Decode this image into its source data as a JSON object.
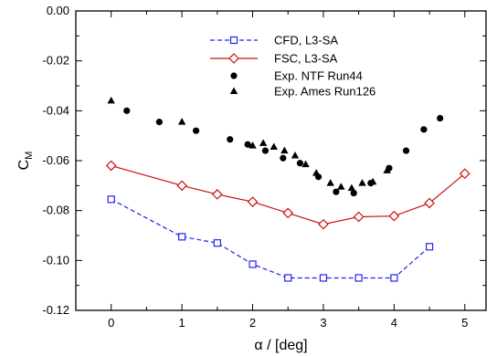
{
  "chart_data": {
    "type": "line",
    "xlabel": "α / [deg]",
    "ylabel_main": "C",
    "ylabel_sub": "M",
    "xlim": [
      -0.5,
      5.3
    ],
    "ylim": [
      -0.12,
      0.0
    ],
    "x_ticks": [
      0,
      1,
      2,
      3,
      4,
      5
    ],
    "x_tick_labels": [
      "0",
      "1",
      "2",
      "3",
      "4",
      "5"
    ],
    "y_ticks": [
      0.0,
      -0.02,
      -0.04,
      -0.06,
      -0.08,
      -0.1,
      -0.12
    ],
    "y_tick_labels": [
      "0.00",
      "-0.02",
      "-0.04",
      "-0.06",
      "-0.08",
      "-0.10",
      "-0.12"
    ],
    "grid": false,
    "legend_position": "top-right",
    "series": [
      {
        "name": "CFD, L3-SA",
        "style": "dashed-line-square",
        "color": "#2222ee",
        "x": [
          0,
          1,
          1.5,
          2,
          2.5,
          3,
          3.5,
          4,
          4.5
        ],
        "y": [
          -0.0755,
          -0.0905,
          -0.093,
          -0.1015,
          -0.107,
          -0.107,
          -0.107,
          -0.107,
          -0.0945
        ]
      },
      {
        "name": "FSC, L3-SA",
        "style": "solid-line-diamond",
        "color": "#cc1111",
        "x": [
          0,
          1,
          1.5,
          2,
          2.5,
          3,
          3.5,
          4,
          4.5,
          5
        ],
        "y": [
          -0.062,
          -0.07,
          -0.0735,
          -0.0765,
          -0.081,
          -0.0855,
          -0.0825,
          -0.0822,
          -0.077,
          -0.0652
        ]
      },
      {
        "name": "Exp. NTF Run44",
        "style": "circle",
        "color": "#000000",
        "x": [
          0.22,
          0.68,
          1.2,
          1.68,
          1.93,
          2.18,
          2.43,
          2.67,
          2.93,
          3.18,
          3.43,
          3.67,
          3.93,
          4.17,
          4.42,
          4.65
        ],
        "y": [
          -0.04,
          -0.0445,
          -0.048,
          -0.0515,
          -0.0535,
          -0.056,
          -0.059,
          -0.061,
          -0.0665,
          -0.0725,
          -0.073,
          -0.069,
          -0.063,
          -0.056,
          -0.0475,
          -0.043
        ]
      },
      {
        "name": "Exp. Ames Run126",
        "style": "triangle",
        "color": "#000000",
        "x": [
          0,
          1,
          2.0,
          2.15,
          2.3,
          2.45,
          2.6,
          2.75,
          2.9,
          3.1,
          3.25,
          3.4,
          3.55,
          3.7,
          3.9
        ],
        "y": [
          -0.036,
          -0.0445,
          -0.054,
          -0.053,
          -0.0545,
          -0.056,
          -0.058,
          -0.0615,
          -0.065,
          -0.069,
          -0.0705,
          -0.071,
          -0.069,
          -0.0685,
          -0.064
        ]
      }
    ]
  }
}
